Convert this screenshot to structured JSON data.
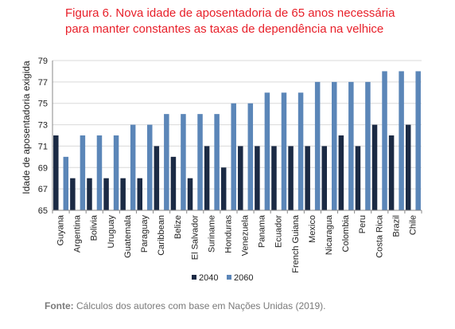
{
  "title_line1": "Figura 6. Nova idade de aposentadoria de 65 anos necessária",
  "title_line2": "para manter constantes as taxas de dependência na velhice",
  "footer_label": "Fonte:",
  "footer_text": " Cálculos dos autores com base em Nações Unidas (2019).",
  "colors": {
    "s2040": "#1b2a44",
    "s2060": "#5b86b8",
    "grid": "#d9d9d9",
    "axis": "#888888"
  },
  "chart_data": {
    "type": "bar",
    "title": "",
    "xlabel": "",
    "ylabel": "Idade de aposentadoria exigida",
    "ylim": [
      65,
      79
    ],
    "yticks": [
      65,
      67,
      69,
      71,
      73,
      75,
      77,
      79
    ],
    "grid": true,
    "legend_position": "bottom",
    "categories": [
      "Guyana",
      "Argentina",
      "Bolivia",
      "Uruguay",
      "Guatemala",
      "Paraguay",
      "Caribbean",
      "Belize",
      "El Salvador",
      "Suriname",
      "Honduras",
      "Venezuela",
      "Panama",
      "Ecuador",
      "French Guiana",
      "Mexico",
      "Nicaragua",
      "Colombia",
      "Peru",
      "Costa Rica",
      "Brazil",
      "Chile"
    ],
    "series": [
      {
        "name": "2040",
        "values": [
          72,
          68,
          68,
          68,
          68,
          68,
          71,
          70,
          68,
          71,
          69,
          71,
          71,
          71,
          71,
          71,
          71,
          72,
          71,
          73,
          72,
          73
        ]
      },
      {
        "name": "2060",
        "values": [
          70,
          72,
          72,
          72,
          73,
          73,
          74,
          74,
          74,
          74,
          75,
          75,
          76,
          76,
          76,
          77,
          77,
          77,
          77,
          78,
          78,
          78
        ]
      }
    ]
  }
}
